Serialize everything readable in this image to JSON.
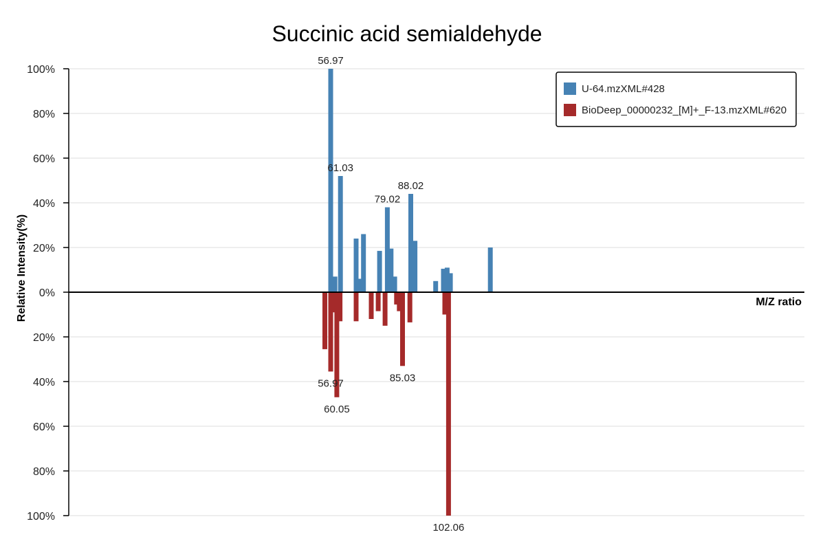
{
  "chart_data": {
    "type": "bar",
    "title": "Succinic acid semialdehyde",
    "xlabel": "M/Z ratio",
    "ylabel": "Relative Intensity(%)",
    "xlim": [
      0,
      160
    ],
    "ylim": [
      -100,
      100
    ],
    "yticks": [
      {
        "value": 100,
        "label": "100%"
      },
      {
        "value": 80,
        "label": "80%"
      },
      {
        "value": 60,
        "label": "60%"
      },
      {
        "value": 40,
        "label": "40%"
      },
      {
        "value": 20,
        "label": "20%"
      },
      {
        "value": 0,
        "label": "0%"
      },
      {
        "value": -20,
        "label": "20%"
      },
      {
        "value": -40,
        "label": "40%"
      },
      {
        "value": -60,
        "label": "60%"
      },
      {
        "value": -80,
        "label": "80%"
      },
      {
        "value": -100,
        "label": "100%"
      }
    ],
    "grid": true,
    "legend_position": "top-right",
    "series": [
      {
        "name": "U-64.mzXML#428",
        "color": "#4682b4",
        "direction": "up",
        "peaks": [
          {
            "mz": 56.97,
            "intensity": 100,
            "label": "56.97"
          },
          {
            "mz": 57.9,
            "intensity": 7
          },
          {
            "mz": 59.1,
            "intensity": 52
          },
          {
            "mz": 61.03,
            "intensity": 52,
            "label": "61.03"
          },
          {
            "mz": 62.5,
            "intensity": 24
          },
          {
            "mz": 63.4,
            "intensity": 6
          },
          {
            "mz": 64.1,
            "intensity": 26
          },
          {
            "mz": 67.6,
            "intensity": 18.5
          },
          {
            "mz": 69.3,
            "intensity": 38
          },
          {
            "mz": 79.02,
            "intensity": 38,
            "label": "79.02"
          },
          {
            "mz": 70.1,
            "intensity": 19.5
          },
          {
            "mz": 70.9,
            "intensity": 7
          },
          {
            "mz": 74.4,
            "intensity": 44
          },
          {
            "mz": 88.02,
            "intensity": 44,
            "label": "88.02"
          },
          {
            "mz": 75.3,
            "intensity": 23
          },
          {
            "mz": 79.8,
            "intensity": 5
          },
          {
            "mz": 81.5,
            "intensity": 10.5
          },
          {
            "mz": 82.3,
            "intensity": 11
          },
          {
            "mz": 83.0,
            "intensity": 8.5
          },
          {
            "mz": 91.7,
            "intensity": 20
          }
        ]
      },
      {
        "name": "BioDeep_00000232_[M]+_F-13.mzXML#620",
        "color": "#a52a2a",
        "direction": "down",
        "peaks": [
          {
            "mz": 55.7,
            "intensity": 25.5
          },
          {
            "mz": 56.97,
            "intensity": 35.5,
            "label": "56.97"
          },
          {
            "mz": 57.6,
            "intensity": 9
          },
          {
            "mz": 58.3,
            "intensity": 47
          },
          {
            "mz": 60.05,
            "intensity": 47,
            "label": "60.05"
          },
          {
            "mz": 59.0,
            "intensity": 13
          },
          {
            "mz": 62.5,
            "intensity": 13
          },
          {
            "mz": 65.8,
            "intensity": 12
          },
          {
            "mz": 67.3,
            "intensity": 8.5
          },
          {
            "mz": 68.8,
            "intensity": 15
          },
          {
            "mz": 71.3,
            "intensity": 5.5
          },
          {
            "mz": 71.9,
            "intensity": 8.5
          },
          {
            "mz": 72.6,
            "intensity": 33
          },
          {
            "mz": 85.03,
            "intensity": 33,
            "label": "85.03"
          },
          {
            "mz": 74.2,
            "intensity": 13.5
          },
          {
            "mz": 81.8,
            "intensity": 10
          },
          {
            "mz": 82.6,
            "intensity": 100
          },
          {
            "mz": 102.06,
            "intensity": 100,
            "label": "102.06"
          }
        ]
      }
    ]
  }
}
